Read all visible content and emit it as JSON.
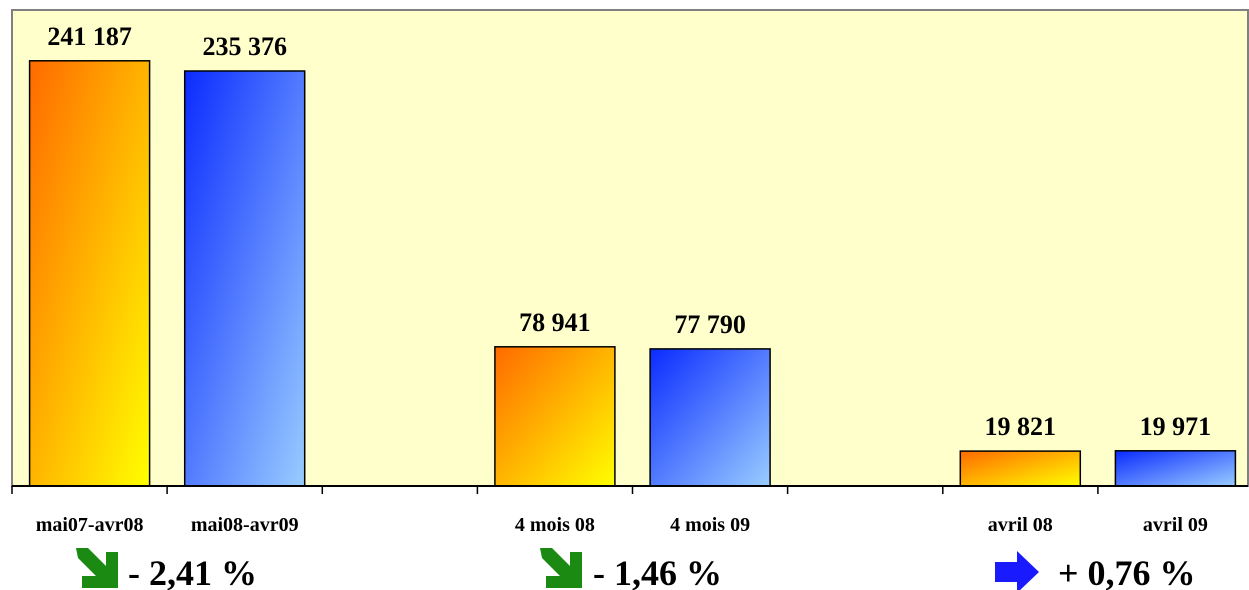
{
  "chart_data": {
    "type": "bar",
    "categories": [
      "mai07-avr08",
      "mai08-avr09",
      "4 mois 08",
      "4 mois 09",
      "avril 08",
      "avril 09"
    ],
    "values": [
      241187,
      235376,
      78941,
      77790,
      19821,
      19971
    ],
    "value_labels": [
      "241 187",
      "235 376",
      "78 941",
      "77 790",
      "19 821",
      "19 971"
    ],
    "bar_styles": [
      "orange",
      "blue",
      "orange",
      "blue",
      "orange",
      "blue"
    ],
    "ylim": [
      0,
      270000
    ],
    "grid": false,
    "title": "",
    "xlabel": "",
    "ylabel": ""
  },
  "changes": [
    {
      "text": "- 2,41 %",
      "arrow": "arrow-down-right-icon",
      "color": "#1a8a12"
    },
    {
      "text": "- 1,46 %",
      "arrow": "arrow-down-right-icon",
      "color": "#1a8a12"
    },
    {
      "text": "+ 0,76 %",
      "arrow": "arrow-right-icon",
      "color": "#1a1aff"
    }
  ],
  "colors": {
    "plot_background": "#ffffcc",
    "orange_start": "#ff6a00",
    "orange_end": "#ffff00",
    "blue_start": "#0a2bff",
    "blue_end": "#99ccff"
  }
}
